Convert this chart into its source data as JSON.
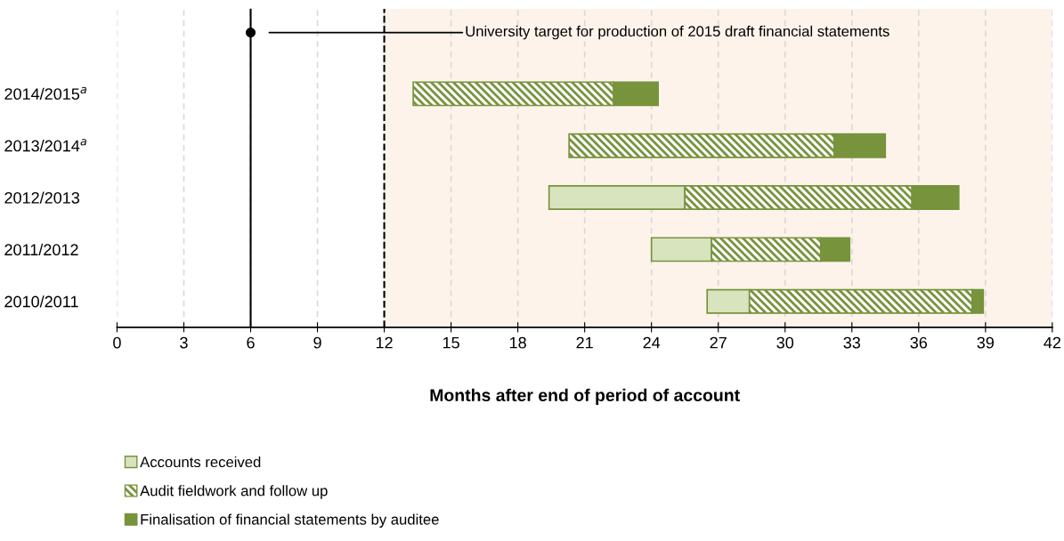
{
  "chart_data": {
    "type": "bar",
    "orientation": "horizontal",
    "xlabel": "Months after end of period of account",
    "categories": [
      "2014/2015$^{a}$",
      "2013/2014$^{a}$",
      "2012/2013",
      "2011/2012",
      "2010/2011"
    ],
    "annotations": [
      "University target for production of 2015 draft financial statements"
    ],
    "series": [
      {
        "name": "Accounts received",
        "color": "#d7e4bd",
        "base": [
          null,
          null,
          19.4,
          24.0,
          26.5
        ],
        "values": [
          null,
          null,
          6.1,
          2.7,
          1.9
        ]
      },
      {
        "name": "Audit fieldwork and follow up",
        "color": "#77933c",
        "base": [
          13.3,
          20.3,
          25.5,
          26.7,
          28.4
        ],
        "values": [
          9.0,
          11.9,
          10.2,
          4.9,
          10.0
        ]
      },
      {
        "name": "Finalisation of financial statements by auditee",
        "color": "#77933c",
        "base": [
          22.3,
          32.2,
          35.7,
          31.6,
          38.4
        ],
        "values": [
          2.0,
          2.3,
          2.1,
          1.3,
          0.5
        ]
      }
    ],
    "xlim": [
      0,
      42
    ],
    "xticks": [
      0,
      3,
      6,
      9,
      12,
      15,
      18,
      21,
      24,
      27,
      30,
      33,
      36,
      39,
      42
    ],
    "grid": "x",
    "legend": "bottom left",
    "ref_lines": [
      {
        "axis": "x",
        "value": 6,
        "color": "#000000",
        "line_style": "solid"
      },
      {
        "axis": "x",
        "value": 12,
        "color": "#000000",
        "line_style": "dashed"
      }
    ],
    "bands": [
      {
        "axis": "x",
        "from": 12,
        "to": 42,
        "color": "#fdf3ea"
      }
    ]
  }
}
